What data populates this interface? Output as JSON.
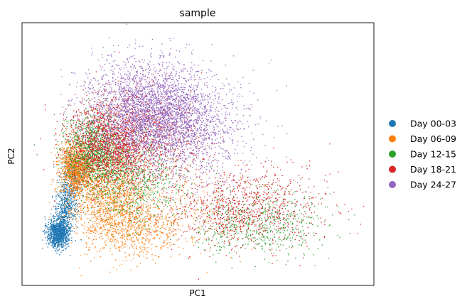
{
  "chart_data": {
    "type": "scatter",
    "title": "sample",
    "xlabel": "PC1",
    "ylabel": "PC2",
    "xlim": [
      -8,
      22
    ],
    "ylim": [
      -6,
      10
    ],
    "grid": false,
    "ticks_shown": false,
    "legend_placement": "right",
    "series": [
      {
        "name": "Day 00-03",
        "color": "#1f77b4",
        "clusters": [
          {
            "cx": -4.9,
            "cy": -2.8,
            "sx": 0.45,
            "sy": 0.45,
            "n": 1100
          },
          {
            "cx": -4.2,
            "cy": -1.2,
            "sx": 0.45,
            "sy": 0.8,
            "n": 500
          },
          {
            "cx": -3.6,
            "cy": 0.7,
            "sx": 0.45,
            "sy": 0.6,
            "n": 250
          }
        ]
      },
      {
        "name": "Day 06-09",
        "color": "#ff7f0e",
        "clusters": [
          {
            "cx": -3.4,
            "cy": 1.2,
            "sx": 0.7,
            "sy": 0.8,
            "n": 1100
          },
          {
            "cx": -0.5,
            "cy": -0.5,
            "sx": 1.8,
            "sy": 1.4,
            "n": 1300
          },
          {
            "cx": 1.5,
            "cy": -2.5,
            "sx": 2.0,
            "sy": 1.0,
            "n": 600
          },
          {
            "cx": 6.0,
            "cy": -1.5,
            "sx": 3.0,
            "sy": 1.5,
            "n": 250
          }
        ]
      },
      {
        "name": "Day 12-15",
        "color": "#2ca02c",
        "clusters": [
          {
            "cx": -1.8,
            "cy": 2.2,
            "sx": 1.3,
            "sy": 1.1,
            "n": 1100
          },
          {
            "cx": 1.5,
            "cy": 0.5,
            "sx": 2.0,
            "sy": 1.4,
            "n": 700
          },
          {
            "cx": 12.0,
            "cy": -2.2,
            "sx": 3.0,
            "sy": 1.0,
            "n": 600
          }
        ]
      },
      {
        "name": "Day 18-21",
        "color": "#d62728",
        "clusters": [
          {
            "cx": -0.8,
            "cy": 2.6,
            "sx": 1.7,
            "sy": 1.3,
            "n": 1500
          },
          {
            "cx": 2.5,
            "cy": 2.8,
            "sx": 2.3,
            "sy": 1.5,
            "n": 900
          },
          {
            "cx": 11.0,
            "cy": -1.3,
            "sx": 3.5,
            "sy": 1.2,
            "n": 1000
          }
        ]
      },
      {
        "name": "Day 24-27",
        "color": "#9467bd",
        "clusters": [
          {
            "cx": 4.0,
            "cy": 4.2,
            "sx": 2.5,
            "sy": 1.5,
            "n": 2800
          },
          {
            "cx": 1.0,
            "cy": 5.2,
            "sx": 2.2,
            "sy": 1.5,
            "n": 800
          },
          {
            "cx": 8.0,
            "cy": 2.8,
            "sx": 2.5,
            "sy": 2.0,
            "n": 400
          }
        ]
      }
    ]
  }
}
